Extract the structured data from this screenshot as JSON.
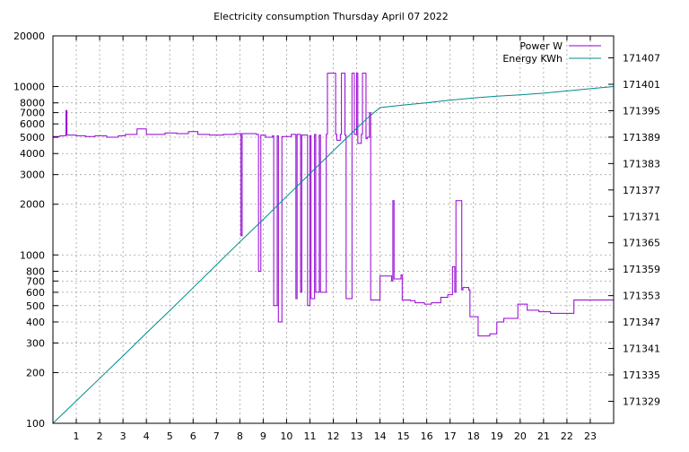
{
  "chart_data": {
    "type": "line",
    "title": "Electricity consumption Thursday April 07 2022",
    "xlabel": "",
    "ylabel_left": "",
    "ylabel_right": "",
    "x_range": [
      0,
      24
    ],
    "x_ticks": [
      1,
      2,
      3,
      4,
      5,
      6,
      7,
      8,
      9,
      10,
      11,
      12,
      13,
      14,
      15,
      16,
      17,
      18,
      19,
      20,
      21,
      22,
      23
    ],
    "y_left": {
      "scale": "log",
      "range": [
        100,
        20000
      ],
      "ticks": [
        100,
        200,
        300,
        400,
        500,
        600,
        700,
        800,
        1000,
        2000,
        3000,
        4000,
        5000,
        6000,
        7000,
        8000,
        10000,
        20000
      ],
      "tick_labels": [
        "100",
        "200",
        "300",
        "400",
        "500",
        "600",
        "700",
        "800",
        "1000",
        "2000",
        "3000",
        "4000",
        "5000",
        "6000",
        "7000",
        "8000",
        "10000",
        "20000"
      ]
    },
    "y_right": {
      "scale": "linear",
      "range": [
        171324,
        171412
      ],
      "ticks": [
        171329,
        171335,
        171341,
        171347,
        171353,
        171359,
        171365,
        171371,
        171377,
        171383,
        171389,
        171395,
        171401,
        171407
      ],
      "tick_labels": [
        "171329",
        "171335",
        "171341",
        "171347",
        "171353",
        "171359",
        "171365",
        "171371",
        "171377",
        "171383",
        "171389",
        "171395",
        "171401",
        "171407"
      ]
    },
    "grid": true,
    "legend_position": "top-right",
    "series": [
      {
        "name": "Power W",
        "axis": "left",
        "style": "steps",
        "color": "#9400d3",
        "x": [
          0,
          0.3,
          0.55,
          0.56,
          0.6,
          1.0,
          1.4,
          1.8,
          2.3,
          2.8,
          3.1,
          3.6,
          4.0,
          4.8,
          5.3,
          5.8,
          6.2,
          6.7,
          7.3,
          7.8,
          8.05,
          8.1,
          8.7,
          8.8,
          8.9,
          9.1,
          9.4,
          9.45,
          9.6,
          9.65,
          9.8,
          10.2,
          10.4,
          10.45,
          10.6,
          10.65,
          10.9,
          11.0,
          11.05,
          11.2,
          11.25,
          11.4,
          11.45,
          11.7,
          11.75,
          12.1,
          12.15,
          12.3,
          12.35,
          12.5,
          12.55,
          12.8,
          12.9,
          13.0,
          13.05,
          13.2,
          13.25,
          13.4,
          13.45,
          13.55,
          13.6,
          13.95,
          14.0,
          14.5,
          14.55,
          14.6,
          14.9,
          14.95,
          15.3,
          15.5,
          15.9,
          16.2,
          16.6,
          16.9,
          17.1,
          17.2,
          17.25,
          17.5,
          17.55,
          17.8,
          17.85,
          18.2,
          18.7,
          19.0,
          19.3,
          19.6,
          19.9,
          20.3,
          20.6,
          20.8,
          21.3,
          21.8,
          22.3,
          22.7,
          23.1,
          23.5,
          24.0
        ],
        "values": [
          5050,
          5100,
          5150,
          7200,
          5150,
          5100,
          5050,
          5100,
          5000,
          5100,
          5200,
          5600,
          5200,
          5300,
          5250,
          5400,
          5200,
          5150,
          5200,
          5250,
          1300,
          5250,
          5200,
          800,
          5150,
          5000,
          5100,
          500,
          5100,
          400,
          5050,
          5200,
          550,
          5200,
          600,
          5150,
          500,
          5100,
          550,
          5200,
          600,
          5150,
          600,
          5200,
          12000,
          5200,
          4800,
          5200,
          12000,
          5150,
          550,
          12000,
          5200,
          12000,
          4600,
          5200,
          12000,
          4900,
          5000,
          7000,
          540,
          540,
          750,
          700,
          2100,
          720,
          760,
          540,
          535,
          520,
          510,
          520,
          560,
          580,
          850,
          600,
          2100,
          620,
          640,
          620,
          430,
          330,
          340,
          400,
          420,
          420,
          510,
          470,
          470,
          460,
          450,
          450,
          540,
          540,
          540,
          540,
          540
        ]
      },
      {
        "name": "Energy KWh",
        "axis": "right",
        "style": "lines",
        "color": "#008b8b",
        "x": [
          0,
          1,
          2,
          3,
          4,
          5,
          6,
          7,
          8,
          9,
          10,
          11,
          12,
          13,
          13.5,
          14,
          15,
          16,
          17,
          18,
          19,
          20,
          21,
          22,
          23,
          24
        ],
        "values": [
          171324,
          171329.1,
          171334.2,
          171339.3,
          171344.5,
          171349.6,
          171354.8,
          171360.0,
          171365.2,
          171370.3,
          171375.5,
          171380.7,
          171385.9,
          171391.0,
          171393.5,
          171395.7,
          171396.3,
          171396.8,
          171397.4,
          171397.9,
          171398.3,
          171398.6,
          171399.0,
          171399.5,
          171400.0,
          171400.5
        ]
      }
    ]
  }
}
